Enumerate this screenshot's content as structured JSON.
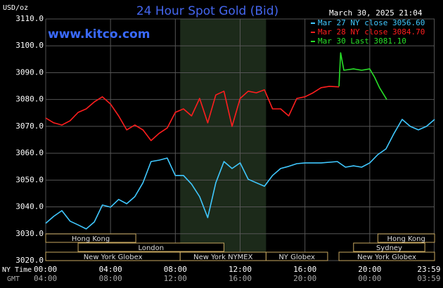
{
  "chart_data": {
    "type": "line",
    "title": "24 Hour Spot Gold (Bid)",
    "unit_label": "USD/oz",
    "timestamp": "March 30, 2025 21:04",
    "watermark": "www.kitco.com",
    "x_row_label": "NY Time",
    "x2_row_label": "GMT",
    "xlim": [
      0,
      24
    ],
    "ylim": [
      3020,
      3110
    ],
    "yticks": [
      {
        "value": 3020,
        "label": "3020.0"
      },
      {
        "value": 3030,
        "label": "3030.0"
      },
      {
        "value": 3040,
        "label": "3040.0"
      },
      {
        "value": 3050,
        "label": "3050.0"
      },
      {
        "value": 3060,
        "label": "3060.0"
      },
      {
        "value": 3070,
        "label": "3070.0"
      },
      {
        "value": 3080,
        "label": "3080.0"
      },
      {
        "value": 3090,
        "label": "3090.0"
      },
      {
        "value": 3100,
        "label": "3100.0"
      },
      {
        "value": 3110,
        "label": "3110.0"
      }
    ],
    "xticks": [
      {
        "value": 0,
        "label": "00:00"
      },
      {
        "value": 4,
        "label": "04:00"
      },
      {
        "value": 8,
        "label": "08:00"
      },
      {
        "value": 12,
        "label": "12:00"
      },
      {
        "value": 16,
        "label": "16:00"
      },
      {
        "value": 20,
        "label": "20:00"
      },
      {
        "value": 23.98,
        "label": "23:59"
      }
    ],
    "x2ticks": [
      {
        "value": 0,
        "label": "04:00"
      },
      {
        "value": 4,
        "label": "08:00"
      },
      {
        "value": 8,
        "label": "12:00"
      },
      {
        "value": 12,
        "label": "16:00"
      },
      {
        "value": 16,
        "label": "20:00"
      },
      {
        "value": 20,
        "label": "00:00"
      },
      {
        "value": 23.98,
        "label": "03:59"
      }
    ],
    "grid": true,
    "highlight": [
      8.3,
      13.6
    ],
    "session_rows": [
      [
        {
          "name": "Hong Kong",
          "start": 0,
          "end": 5.56
        },
        {
          "name": "Hong Kong",
          "start": 20.5,
          "end": 24
        }
      ],
      [
        {
          "name": "London",
          "start": 2,
          "end": 11
        },
        {
          "name": "Sydney",
          "start": 19,
          "end": 23.4
        }
      ],
      [
        {
          "name": "New York Globex",
          "start": 0,
          "end": 8.3
        },
        {
          "name": "New York NYMEX",
          "start": 8.3,
          "end": 13.6
        },
        {
          "name": "NY Globex",
          "start": 13.6,
          "end": 17.4
        },
        {
          "name": "New York Globex",
          "start": 18.1,
          "end": 24
        }
      ]
    ],
    "series": [
      {
        "name": "Mar 27 NY close 3056.60",
        "color": "#40c8ff",
        "x": [
          0,
          0.5,
          1,
          1.5,
          2,
          2.5,
          3,
          3.5,
          4,
          4.5,
          5,
          5.5,
          6,
          6.5,
          7,
          7.5,
          8,
          8.5,
          9,
          9.5,
          10,
          10.5,
          11,
          11.5,
          12,
          12.5,
          13,
          13.5,
          14,
          14.5,
          15,
          15.5,
          16,
          17,
          18,
          18.5,
          19,
          19.5,
          20,
          20.5,
          21,
          21.5,
          22,
          22.5,
          23,
          23.5,
          24
        ],
        "values": [
          3033.9,
          3036.5,
          3038.6,
          3034.7,
          3033.3,
          3031.8,
          3034.4,
          3040.7,
          3039.9,
          3042.8,
          3041.2,
          3043.8,
          3049.0,
          3056.9,
          3057.4,
          3058.2,
          3051.7,
          3051.7,
          3048.5,
          3043.8,
          3036.0,
          3049.0,
          3056.9,
          3054.3,
          3056.4,
          3050.3,
          3049.0,
          3047.7,
          3051.7,
          3054.3,
          3055.1,
          3056.1,
          3056.4,
          3056.4,
          3056.9,
          3054.8,
          3055.3,
          3054.8,
          3056.4,
          3059.5,
          3061.6,
          3067.4,
          3072.6,
          3070.0,
          3068.7,
          3070.0,
          3072.6
        ]
      },
      {
        "name": "Mar 28 NY close 3084.70",
        "color": "#ff1e1e",
        "x": [
          0,
          0.5,
          1,
          1.5,
          2,
          2.5,
          3,
          3.5,
          4,
          4.5,
          5,
          5.5,
          6,
          6.5,
          7,
          7.5,
          8,
          8.5,
          9,
          9.5,
          10,
          10.5,
          11,
          11.5,
          12,
          12.5,
          13,
          13.5,
          14,
          14.5,
          15,
          15.5,
          16,
          16.5,
          17,
          17.5,
          18.1
        ],
        "values": [
          3073.1,
          3071.3,
          3070.5,
          3072.1,
          3075.2,
          3076.5,
          3079.1,
          3081.0,
          3078.3,
          3073.9,
          3068.7,
          3070.5,
          3068.7,
          3064.7,
          3067.4,
          3069.4,
          3075.2,
          3076.5,
          3073.9,
          3080.4,
          3071.3,
          3081.7,
          3083.1,
          3070.0,
          3080.4,
          3083.1,
          3082.5,
          3083.6,
          3076.5,
          3076.5,
          3073.9,
          3080.4,
          3081.0,
          3082.5,
          3084.4,
          3084.9,
          3084.7
        ]
      },
      {
        "name": "Mar 30 Last 3081.10",
        "color": "#28e028",
        "x": [
          18.1,
          18.2,
          18.4,
          19,
          19.5,
          20,
          20.3,
          20.6,
          21.05
        ],
        "values": [
          3084.9,
          3097.4,
          3090.9,
          3091.4,
          3090.9,
          3091.4,
          3088.3,
          3084.4,
          3080.0
        ]
      }
    ]
  }
}
